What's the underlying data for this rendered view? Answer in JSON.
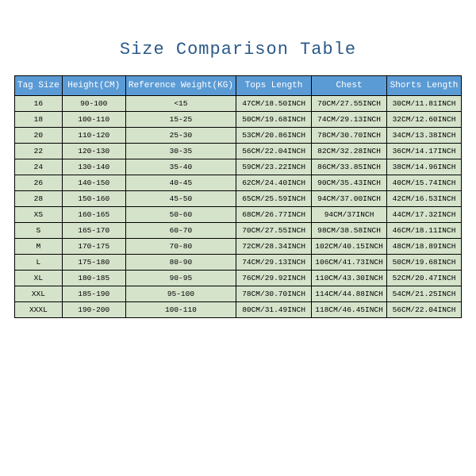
{
  "title": "Size Comparison Table",
  "table": {
    "type": "table",
    "header_bg": "#5b9bd5",
    "header_fg": "#ffffff",
    "cell_bg": "#d5e3cb",
    "border_color": "#000000",
    "columns": [
      "Tag Size",
      "Height(CM)",
      "Reference Weight(KG)",
      "Tops Length",
      "Chest",
      "Shorts Length"
    ],
    "rows": [
      [
        "16",
        "90-100",
        "<15",
        "47CM/18.50INCH",
        "70CM/27.55INCH",
        "30CM/11.81INCH"
      ],
      [
        "18",
        "100-110",
        "15-25",
        "50CM/19.68INCH",
        "74CM/29.13INCH",
        "32CM/12.60INCH"
      ],
      [
        "20",
        "110-120",
        "25-30",
        "53CM/20.86INCH",
        "78CM/30.70INCH",
        "34CM/13.38INCH"
      ],
      [
        "22",
        "120-130",
        "30-35",
        "56CM/22.04INCH",
        "82CM/32.28INCH",
        "36CM/14.17INCH"
      ],
      [
        "24",
        "130-140",
        "35-40",
        "59CM/23.22INCH",
        "86CM/33.85INCH",
        "38CM/14.96INCH"
      ],
      [
        "26",
        "140-150",
        "40-45",
        "62CM/24.40INCH",
        "90CM/35.43INCH",
        "40CM/15.74INCH"
      ],
      [
        "28",
        "150-160",
        "45-50",
        "65CM/25.59INCH",
        "94CM/37.00INCH",
        "42CM/16.53INCH"
      ],
      [
        "XS",
        "160-165",
        "50-60",
        "68CM/26.77INCH",
        "94CM/37INCH",
        "44CM/17.32INCH"
      ],
      [
        "S",
        "165-170",
        "60-70",
        "70CM/27.55INCH",
        "98CM/38.58INCH",
        "46CM/18.11INCH"
      ],
      [
        "M",
        "170-175",
        "70-80",
        "72CM/28.34INCH",
        "102CM/40.15INCH",
        "48CM/18.89INCH"
      ],
      [
        "L",
        "175-180",
        "80-90",
        "74CM/29.13INCH",
        "106CM/41.73INCH",
        "50CM/19.68INCH"
      ],
      [
        "XL",
        "180-185",
        "90-95",
        "76CM/29.92INCH",
        "110CM/43.30INCH",
        "52CM/20.47INCH"
      ],
      [
        "XXL",
        "185-190",
        "95-100",
        "78CM/30.70INCH",
        "114CM/44.88INCH",
        "54CM/21.25INCH"
      ],
      [
        "XXXL",
        "190-200",
        "100-110",
        "80CM/31.49INCH",
        "118CM/46.45INCH",
        "56CM/22.04INCH"
      ]
    ]
  }
}
